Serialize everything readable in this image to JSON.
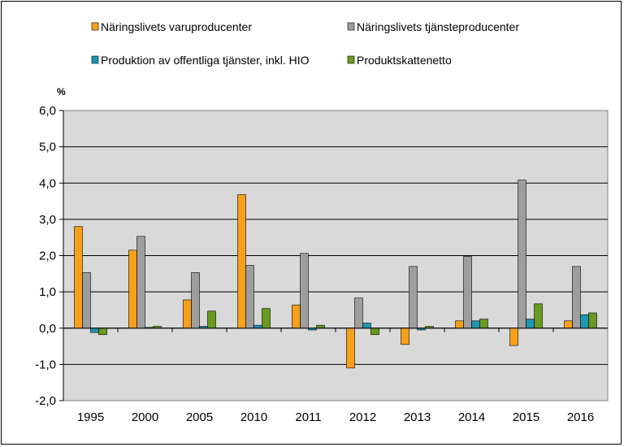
{
  "chart_data": {
    "type": "bar",
    "ylabel": "%",
    "ylim": [
      -2.0,
      6.0
    ],
    "yticks": [
      "6,0",
      "5,0",
      "4,0",
      "3,0",
      "2,0",
      "1,0",
      "0,0",
      "-1,0",
      "-2,0"
    ],
    "categories": [
      "1995",
      "2000",
      "2005",
      "2010",
      "2011",
      "2012",
      "2013",
      "2014",
      "2015",
      "2016"
    ],
    "grid": true,
    "legend_position": "top",
    "plot_background": "#d9d9d9",
    "series": [
      {
        "name": "Näringslivets varuproducenter",
        "color": "#f7a11a",
        "values": [
          2.8,
          2.15,
          0.78,
          3.68,
          0.64,
          -1.1,
          -0.45,
          0.2,
          -0.48,
          0.2
        ]
      },
      {
        "name": "Näringslivets tjänsteproducenter",
        "color": "#9e9e9e",
        "values": [
          1.53,
          2.53,
          1.53,
          1.73,
          2.06,
          0.83,
          1.7,
          1.98,
          4.08,
          1.7
        ]
      },
      {
        "name": "Produktion av offentliga tjänster, inkl. HIO",
        "color": "#1f96b4",
        "values": [
          -0.12,
          0.02,
          0.05,
          0.08,
          -0.05,
          0.14,
          -0.05,
          0.2,
          0.25,
          0.37
        ]
      },
      {
        "name": "Produktskattenetto",
        "color": "#6a9a1f",
        "values": [
          -0.18,
          0.05,
          0.47,
          0.54,
          0.08,
          -0.18,
          0.05,
          0.25,
          0.67,
          0.42
        ]
      }
    ]
  }
}
